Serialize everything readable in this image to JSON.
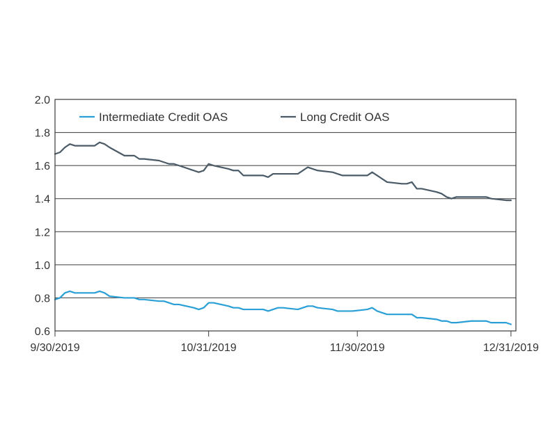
{
  "chart_data": {
    "type": "line",
    "title": "",
    "xlabel": "",
    "ylabel": "",
    "ylim": [
      0.6,
      2.0
    ],
    "yticks": [
      "0.6",
      "0.8",
      "1.0",
      "1.2",
      "1.4",
      "1.6",
      "1.8",
      "2.0"
    ],
    "xlim": [
      "2019-09-30",
      "2020-01-01"
    ],
    "xticks": [
      {
        "date": "2019-09-30",
        "label": "9/30/2019"
      },
      {
        "date": "2019-10-31",
        "label": "10/31/2019"
      },
      {
        "date": "2019-11-30",
        "label": "11/30/2019"
      },
      {
        "date": "2019-12-31",
        "label": "12/31/2019"
      }
    ],
    "grid": "horizontal",
    "legend_position": "top",
    "series": [
      {
        "name": "Intermediate Credit OAS",
        "color": "#2a9fd6",
        "points": [
          [
            "2019-09-30",
            0.79
          ],
          [
            "2019-10-01",
            0.8
          ],
          [
            "2019-10-02",
            0.83
          ],
          [
            "2019-10-03",
            0.84
          ],
          [
            "2019-10-04",
            0.83
          ],
          [
            "2019-10-07",
            0.83
          ],
          [
            "2019-10-08",
            0.83
          ],
          [
            "2019-10-09",
            0.84
          ],
          [
            "2019-10-10",
            0.83
          ],
          [
            "2019-10-11",
            0.81
          ],
          [
            "2019-10-14",
            0.8
          ],
          [
            "2019-10-15",
            0.8
          ],
          [
            "2019-10-16",
            0.8
          ],
          [
            "2019-10-17",
            0.79
          ],
          [
            "2019-10-18",
            0.79
          ],
          [
            "2019-10-21",
            0.78
          ],
          [
            "2019-10-22",
            0.78
          ],
          [
            "2019-10-23",
            0.77
          ],
          [
            "2019-10-24",
            0.76
          ],
          [
            "2019-10-25",
            0.76
          ],
          [
            "2019-10-28",
            0.74
          ],
          [
            "2019-10-29",
            0.73
          ],
          [
            "2019-10-30",
            0.74
          ],
          [
            "2019-10-31",
            0.77
          ],
          [
            "2019-11-01",
            0.77
          ],
          [
            "2019-11-04",
            0.75
          ],
          [
            "2019-11-05",
            0.74
          ],
          [
            "2019-11-06",
            0.74
          ],
          [
            "2019-11-07",
            0.73
          ],
          [
            "2019-11-08",
            0.73
          ],
          [
            "2019-11-11",
            0.73
          ],
          [
            "2019-11-12",
            0.72
          ],
          [
            "2019-11-13",
            0.73
          ],
          [
            "2019-11-14",
            0.74
          ],
          [
            "2019-11-15",
            0.74
          ],
          [
            "2019-11-18",
            0.73
          ],
          [
            "2019-11-19",
            0.74
          ],
          [
            "2019-11-20",
            0.75
          ],
          [
            "2019-11-21",
            0.75
          ],
          [
            "2019-11-22",
            0.74
          ],
          [
            "2019-11-25",
            0.73
          ],
          [
            "2019-11-26",
            0.72
          ],
          [
            "2019-11-27",
            0.72
          ],
          [
            "2019-11-29",
            0.72
          ],
          [
            "2019-12-02",
            0.73
          ],
          [
            "2019-12-03",
            0.74
          ],
          [
            "2019-12-04",
            0.72
          ],
          [
            "2019-12-05",
            0.71
          ],
          [
            "2019-12-06",
            0.7
          ],
          [
            "2019-12-09",
            0.7
          ],
          [
            "2019-12-10",
            0.7
          ],
          [
            "2019-12-11",
            0.7
          ],
          [
            "2019-12-12",
            0.68
          ],
          [
            "2019-12-13",
            0.68
          ],
          [
            "2019-12-16",
            0.67
          ],
          [
            "2019-12-17",
            0.66
          ],
          [
            "2019-12-18",
            0.66
          ],
          [
            "2019-12-19",
            0.65
          ],
          [
            "2019-12-20",
            0.65
          ],
          [
            "2019-12-23",
            0.66
          ],
          [
            "2019-12-24",
            0.66
          ],
          [
            "2019-12-26",
            0.66
          ],
          [
            "2019-12-27",
            0.65
          ],
          [
            "2019-12-30",
            0.65
          ],
          [
            "2019-12-31",
            0.64
          ]
        ]
      },
      {
        "name": "Long Credit OAS",
        "color": "#4a5a66",
        "points": [
          [
            "2019-09-30",
            1.67
          ],
          [
            "2019-10-01",
            1.68
          ],
          [
            "2019-10-02",
            1.71
          ],
          [
            "2019-10-03",
            1.73
          ],
          [
            "2019-10-04",
            1.72
          ],
          [
            "2019-10-07",
            1.72
          ],
          [
            "2019-10-08",
            1.72
          ],
          [
            "2019-10-09",
            1.74
          ],
          [
            "2019-10-10",
            1.73
          ],
          [
            "2019-10-11",
            1.71
          ],
          [
            "2019-10-14",
            1.66
          ],
          [
            "2019-10-15",
            1.66
          ],
          [
            "2019-10-16",
            1.66
          ],
          [
            "2019-10-17",
            1.64
          ],
          [
            "2019-10-18",
            1.64
          ],
          [
            "2019-10-21",
            1.63
          ],
          [
            "2019-10-22",
            1.62
          ],
          [
            "2019-10-23",
            1.61
          ],
          [
            "2019-10-24",
            1.61
          ],
          [
            "2019-10-25",
            1.6
          ],
          [
            "2019-10-28",
            1.57
          ],
          [
            "2019-10-29",
            1.56
          ],
          [
            "2019-10-30",
            1.57
          ],
          [
            "2019-10-31",
            1.61
          ],
          [
            "2019-11-01",
            1.6
          ],
          [
            "2019-11-04",
            1.58
          ],
          [
            "2019-11-05",
            1.57
          ],
          [
            "2019-11-06",
            1.57
          ],
          [
            "2019-11-07",
            1.54
          ],
          [
            "2019-11-08",
            1.54
          ],
          [
            "2019-11-11",
            1.54
          ],
          [
            "2019-11-12",
            1.53
          ],
          [
            "2019-11-13",
            1.55
          ],
          [
            "2019-11-14",
            1.55
          ],
          [
            "2019-11-15",
            1.55
          ],
          [
            "2019-11-18",
            1.55
          ],
          [
            "2019-11-19",
            1.57
          ],
          [
            "2019-11-20",
            1.59
          ],
          [
            "2019-11-21",
            1.58
          ],
          [
            "2019-11-22",
            1.57
          ],
          [
            "2019-11-25",
            1.56
          ],
          [
            "2019-11-26",
            1.55
          ],
          [
            "2019-11-27",
            1.54
          ],
          [
            "2019-11-29",
            1.54
          ],
          [
            "2019-12-02",
            1.54
          ],
          [
            "2019-12-03",
            1.56
          ],
          [
            "2019-12-04",
            1.54
          ],
          [
            "2019-12-05",
            1.52
          ],
          [
            "2019-12-06",
            1.5
          ],
          [
            "2019-12-09",
            1.49
          ],
          [
            "2019-12-10",
            1.49
          ],
          [
            "2019-12-11",
            1.5
          ],
          [
            "2019-12-12",
            1.46
          ],
          [
            "2019-12-13",
            1.46
          ],
          [
            "2019-12-16",
            1.44
          ],
          [
            "2019-12-17",
            1.43
          ],
          [
            "2019-12-18",
            1.41
          ],
          [
            "2019-12-19",
            1.4
          ],
          [
            "2019-12-20",
            1.41
          ],
          [
            "2019-12-23",
            1.41
          ],
          [
            "2019-12-24",
            1.41
          ],
          [
            "2019-12-26",
            1.41
          ],
          [
            "2019-12-27",
            1.4
          ],
          [
            "2019-12-30",
            1.39
          ],
          [
            "2019-12-31",
            1.39
          ]
        ]
      }
    ]
  }
}
